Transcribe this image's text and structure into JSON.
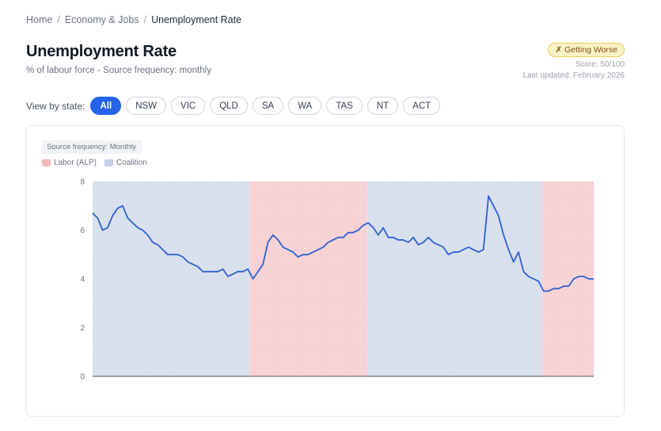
{
  "breadcrumb": {
    "items": [
      "Home",
      "Economy & Jobs",
      "Unemployment Rate"
    ],
    "separator": "/"
  },
  "header": {
    "title": "Unemployment Rate",
    "subtitle": "% of labour force - Source frequency: monthly"
  },
  "status": {
    "badge_icon": "✗",
    "badge_label": "Getting Worse",
    "score": "Score: 50/100",
    "last_updated": "Last updated: February 2026"
  },
  "state_filter": {
    "label": "View by state:",
    "options": [
      "All",
      "NSW",
      "VIC",
      "QLD",
      "SA",
      "WA",
      "TAS",
      "NT",
      "ACT"
    ],
    "selected": "All"
  },
  "chart_card": {
    "frequency_tag": "Source frequency: Monthly",
    "legend": [
      {
        "label": "Labor (ALP)",
        "color": "#f2b8bc"
      },
      {
        "label": "Coalition",
        "color": "#c3cfe4"
      }
    ]
  },
  "colors": {
    "accent": "#2563eb",
    "line": "#2f5fd0",
    "labor_band": "#f6d2d5",
    "coalition_band": "#d8e0ee",
    "badge_bg": "#fef3c7",
    "badge_border": "#f2cf5b"
  },
  "chart_data": {
    "type": "line",
    "title": "Unemployment Rate",
    "xlabel": "",
    "ylabel": "% of labour force",
    "ylim": [
      0,
      8
    ],
    "yticks": [
      0,
      2,
      4,
      6,
      8
    ],
    "grid": true,
    "legend_position": "top-left",
    "bands": [
      {
        "party": "Coalition",
        "x_start": 0.0,
        "x_end": 0.314
      },
      {
        "party": "Labor (ALP)",
        "x_start": 0.314,
        "x_end": 0.548
      },
      {
        "party": "Coalition",
        "x_start": 0.548,
        "x_end": 0.897
      },
      {
        "party": "Labor (ALP)",
        "x_start": 0.897,
        "x_end": 1.0
      }
    ],
    "series": [
      {
        "name": "Unemployment Rate",
        "x": [
          0.0,
          0.01,
          0.02,
          0.03,
          0.04,
          0.05,
          0.06,
          0.07,
          0.08,
          0.09,
          0.1,
          0.11,
          0.12,
          0.13,
          0.14,
          0.15,
          0.16,
          0.17,
          0.18,
          0.19,
          0.2,
          0.21,
          0.22,
          0.23,
          0.24,
          0.25,
          0.26,
          0.27,
          0.28,
          0.29,
          0.3,
          0.31,
          0.32,
          0.33,
          0.34,
          0.35,
          0.36,
          0.37,
          0.38,
          0.39,
          0.4,
          0.41,
          0.42,
          0.43,
          0.44,
          0.45,
          0.46,
          0.47,
          0.48,
          0.49,
          0.5,
          0.51,
          0.52,
          0.53,
          0.54,
          0.55,
          0.56,
          0.57,
          0.58,
          0.59,
          0.6,
          0.61,
          0.62,
          0.63,
          0.64,
          0.65,
          0.66,
          0.67,
          0.68,
          0.69,
          0.7,
          0.71,
          0.72,
          0.73,
          0.74,
          0.75,
          0.76,
          0.77,
          0.78,
          0.79,
          0.8,
          0.81,
          0.82,
          0.83,
          0.84,
          0.85,
          0.86,
          0.87,
          0.88,
          0.89,
          0.9,
          0.91,
          0.92,
          0.93,
          0.94,
          0.95,
          0.96,
          0.97,
          0.98,
          0.99,
          1.0
        ],
        "values": [
          6.7,
          6.5,
          6.0,
          6.1,
          6.6,
          6.9,
          7.0,
          6.5,
          6.3,
          6.1,
          6.0,
          5.8,
          5.5,
          5.4,
          5.2,
          5.0,
          5.0,
          5.0,
          4.9,
          4.7,
          4.6,
          4.5,
          4.3,
          4.3,
          4.3,
          4.3,
          4.4,
          4.1,
          4.2,
          4.3,
          4.3,
          4.4,
          4.0,
          4.3,
          4.6,
          5.5,
          5.8,
          5.6,
          5.3,
          5.2,
          5.1,
          4.9,
          5.0,
          5.0,
          5.1,
          5.2,
          5.3,
          5.5,
          5.6,
          5.7,
          5.7,
          5.9,
          5.9,
          6.0,
          6.2,
          6.3,
          6.1,
          5.8,
          6.1,
          5.7,
          5.7,
          5.6,
          5.6,
          5.5,
          5.7,
          5.4,
          5.5,
          5.7,
          5.5,
          5.4,
          5.3,
          5.0,
          5.1,
          5.1,
          5.2,
          5.3,
          5.2,
          5.1,
          5.2,
          7.4,
          7.0,
          6.6,
          5.8,
          5.2,
          4.7,
          5.1,
          4.3,
          4.1,
          4.0,
          3.9,
          3.5,
          3.5,
          3.6,
          3.6,
          3.7,
          3.7,
          4.0,
          4.1,
          4.1,
          4.0,
          4.0
        ]
      }
    ]
  }
}
